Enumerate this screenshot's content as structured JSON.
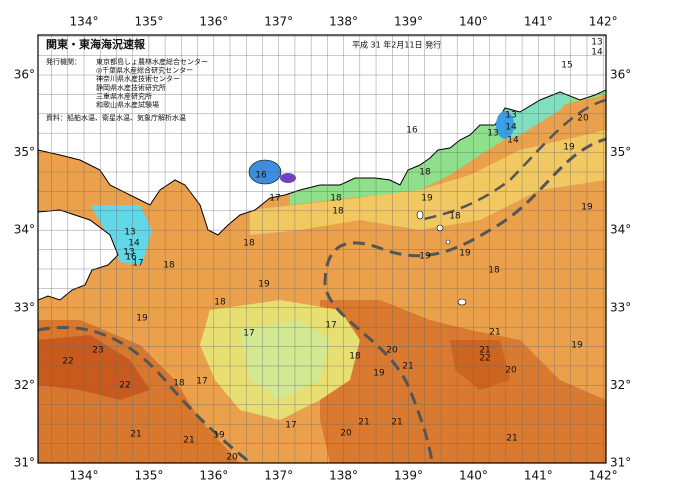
{
  "header": {
    "title": "関東・東海海況速報",
    "date": "平成 31 年2月11日 発行"
  },
  "issuers": {
    "label": "発行機関：",
    "items": [
      "東京都島しょ農林水産総合センター",
      "◎千葉県水産総合研究センター",
      "神奈川県水産技術センター",
      "静岡県水産技術研究所",
      "三重県水産研究所",
      "和歌山県水産試験場"
    ]
  },
  "source": "資料：船舶水温、衛星水温、気象庁解析水温",
  "axes": {
    "longitudes": [
      "134°",
      "135°",
      "136°",
      "137°",
      "138°",
      "139°",
      "140°",
      "141°",
      "142°"
    ],
    "latitudes": [
      "36°",
      "35°",
      "34°",
      "33°",
      "32°",
      "31°"
    ]
  },
  "temperature_labels": [
    "13",
    "14",
    "15",
    "16",
    "13",
    "14",
    "13",
    "14",
    "20",
    "19",
    "18",
    "19",
    "18",
    "19",
    "18",
    "18",
    "18",
    "19",
    "19",
    "18",
    "18",
    "19",
    "18",
    "19",
    "17",
    "17",
    "18",
    "20",
    "21",
    "21",
    "22",
    "21",
    "19",
    "20",
    "22",
    "23",
    "22",
    "18",
    "17",
    "19",
    "17",
    "20",
    "21",
    "21",
    "21",
    "21",
    "21",
    "19",
    "20",
    "16",
    "17",
    "13",
    "14",
    "13",
    "16",
    "17"
  ]
}
